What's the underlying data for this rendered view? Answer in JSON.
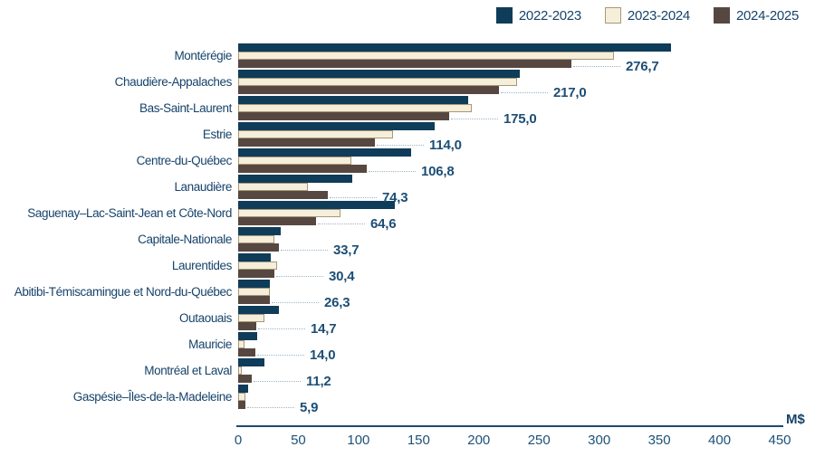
{
  "legend": {
    "items": [
      {
        "label": "2022-2023",
        "color": "#0f3c59",
        "border": "#0f3c59"
      },
      {
        "label": "2023-2024",
        "color": "#f5eeda",
        "border": "#a79878"
      },
      {
        "label": "2024-2025",
        "color": "#564840",
        "border": "#564840"
      }
    ]
  },
  "axis": {
    "ticks": [
      0,
      50,
      100,
      150,
      200,
      250,
      300,
      350,
      400,
      450
    ],
    "unit_label": "M$",
    "min": 0,
    "max": 450
  },
  "chart_data": {
    "type": "bar",
    "orientation": "horizontal",
    "title": "",
    "xlabel": "M$",
    "ylabel": "",
    "xlim": [
      0,
      450
    ],
    "grid": false,
    "legend_position": "top-right",
    "categories": [
      "Montérégie",
      "Chaudière-Appalaches",
      "Bas-Saint-Laurent",
      "Estrie",
      "Centre-du-Québec",
      "Lanaudière",
      "Saguenay–Lac-Saint-Jean et Côte-Nord",
      "Capitale-Nationale",
      "Laurentides",
      "Abitibi-Témiscamingue et Nord-du-Québec",
      "Outaouais",
      "Mauricie",
      "Montréal et Laval",
      "Gaspésie–Îles-de-la-Madeleine"
    ],
    "series": [
      {
        "name": "2022-2023",
        "color": "#0f3c59",
        "values": [
          360,
          234,
          191,
          163,
          144,
          95,
          130,
          35,
          27,
          26,
          34,
          16,
          22,
          8
        ]
      },
      {
        "name": "2023-2024",
        "color": "#f5eeda",
        "values": [
          312,
          232,
          194,
          129,
          94,
          58,
          85,
          30,
          32,
          26,
          22,
          5,
          3,
          6
        ]
      },
      {
        "name": "2024-2025",
        "color": "#564840",
        "values": [
          276.7,
          217.0,
          175.0,
          114.0,
          106.8,
          74.3,
          64.6,
          33.7,
          30.4,
          26.3,
          14.7,
          14.0,
          11.2,
          5.9
        ]
      }
    ],
    "value_labels": [
      "276,7",
      "217,0",
      "175,0",
      "114,0",
      "106,8",
      "74,3",
      "64,6",
      "33,7",
      "30,4",
      "26,3",
      "14,7",
      "14,0",
      "11,2",
      "5,9"
    ]
  }
}
